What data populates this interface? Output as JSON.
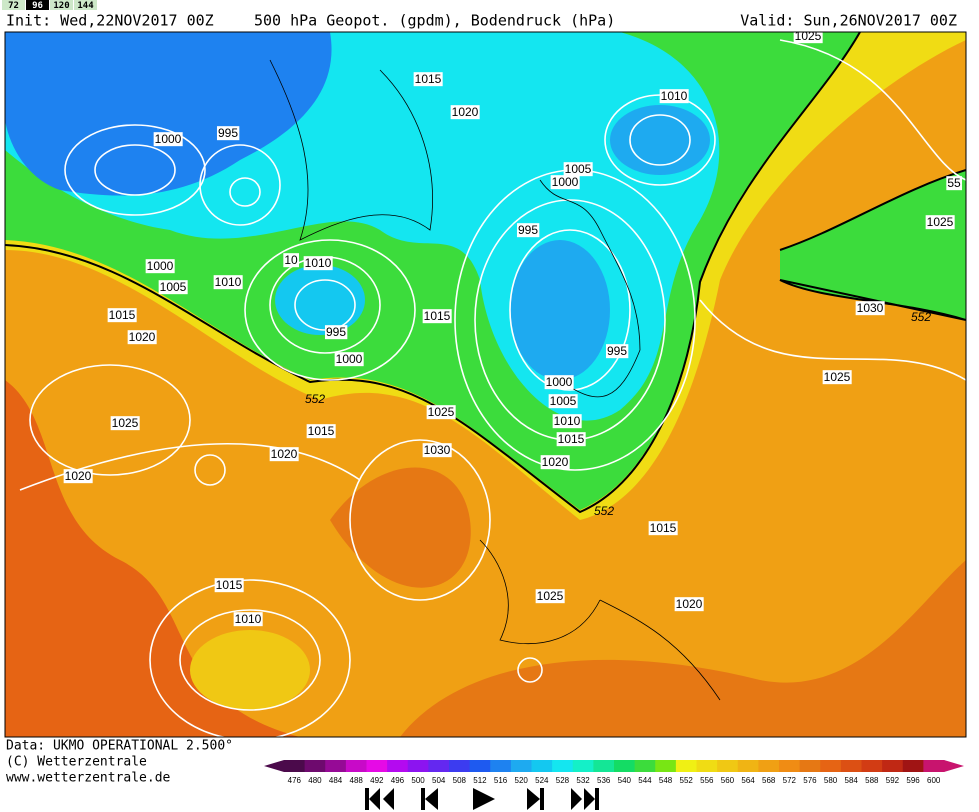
{
  "tabs": [
    "72",
    "96",
    "120",
    "144"
  ],
  "header": {
    "init": "Init: Wed,22NOV2017 00Z",
    "title": "500 hPa Geopot. (gpdm), Bodendruck (hPa)",
    "valid": "Valid: Sun,26NOV2017 00Z"
  },
  "map": {
    "isobar_labels": [
      1025,
      1015,
      1020,
      1010,
      1000,
      995,
      1005,
      1000,
      995,
      1000,
      1010,
      1005,
      10,
      1010,
      1015,
      1015,
      1030,
      552,
      1020,
      995,
      995,
      1000,
      1025,
      1000,
      552,
      1005,
      1025,
      1010,
      1015,
      1015,
      1025,
      1030,
      1020,
      1020,
      1020,
      552,
      1015,
      1025,
      1015,
      1020,
      1010,
      1025,
      55
    ]
  },
  "colorbar": {
    "ticks": [
      476,
      480,
      484,
      488,
      492,
      496,
      500,
      504,
      508,
      512,
      516,
      520,
      524,
      528,
      532,
      536,
      540,
      544,
      548,
      552,
      556,
      560,
      564,
      568,
      572,
      576,
      580,
      584,
      588,
      592,
      596,
      600
    ],
    "colors": [
      "#4b0a4b",
      "#6e0a6e",
      "#960a96",
      "#c80ac8",
      "#e60ae6",
      "#b40af0",
      "#8c14f0",
      "#6428f0",
      "#3c3cf0",
      "#1e5af0",
      "#1e82f0",
      "#1eaaf0",
      "#14c8f0",
      "#14e6f0",
      "#14f0c8",
      "#14e696",
      "#14dc64",
      "#3cdc3c",
      "#78e614",
      "#f0f014",
      "#f0dc14",
      "#f0c814",
      "#f0b414",
      "#f0a014",
      "#f08c14",
      "#e67814",
      "#e66414",
      "#dc5014",
      "#d23c14",
      "#c02814",
      "#a01414",
      "#c8146e"
    ]
  },
  "footer": {
    "data": "Data: UKMO OPERATIONAL 2.500°",
    "copyright": "(C) Wetterzentrale",
    "url": "www.wetterzentrale.de"
  }
}
